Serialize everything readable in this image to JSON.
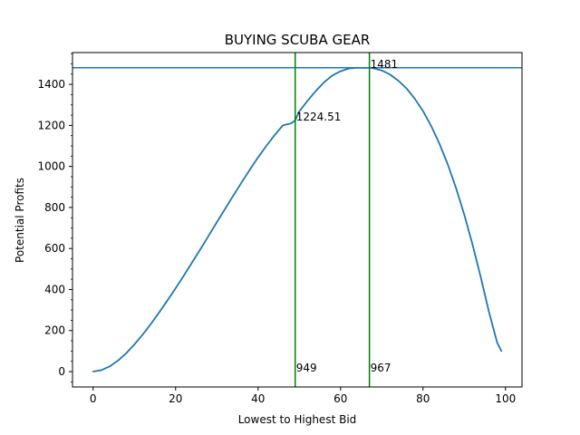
{
  "chart_data": {
    "type": "line",
    "title": "BUYING SCUBA GEAR",
    "xlabel": "Lowest to Highest Bid",
    "ylabel": "Potential Profits",
    "xlim": [
      -5,
      104
    ],
    "ylim": [
      -75,
      1555
    ],
    "x_ticks": [
      0,
      20,
      40,
      60,
      80,
      100
    ],
    "y_ticks": [
      0,
      200,
      400,
      600,
      800,
      1000,
      1200,
      1400
    ],
    "grid": false,
    "colors": {
      "curve": "#1f77b4",
      "hline": "#1f77b4",
      "vlines": "#008000"
    },
    "series": [
      {
        "x": [
          0,
          2,
          4,
          6,
          8,
          10,
          12,
          14,
          16,
          18,
          20,
          22,
          24,
          26,
          28,
          30,
          32,
          34,
          36,
          38,
          40,
          42,
          44,
          46,
          48,
          49,
          50,
          52,
          54,
          56,
          58,
          60,
          62,
          64,
          66,
          67,
          68,
          70,
          72,
          74,
          76,
          78,
          80,
          82,
          84,
          86,
          88,
          90,
          92,
          94,
          96,
          98,
          99
        ],
        "y": [
          0,
          7,
          25,
          53,
          89,
          132,
          180,
          232,
          288,
          346,
          406,
          468,
          532,
          596,
          662,
          728,
          793,
          858,
          922,
          984,
          1044,
          1100,
          1152,
          1200,
          1210,
          1224.51,
          1268,
          1320,
          1368,
          1410,
          1443,
          1464,
          1477,
          1481,
          1480,
          1481,
          1478,
          1468,
          1448,
          1418,
          1380,
          1330,
          1270,
          1196,
          1110,
          1010,
          895,
          765,
          620,
          460,
          290,
          140,
          100
        ]
      }
    ],
    "hlines": [
      1481
    ],
    "vlines": [
      49,
      67
    ],
    "annotations": [
      {
        "text": "1481",
        "x": 67,
        "y": 1481
      },
      {
        "text": "1224.51",
        "x": 49,
        "y": 1224.51
      },
      {
        "text": "949",
        "x": 49,
        "y": 0
      },
      {
        "text": "967",
        "x": 67,
        "y": 0
      }
    ]
  }
}
